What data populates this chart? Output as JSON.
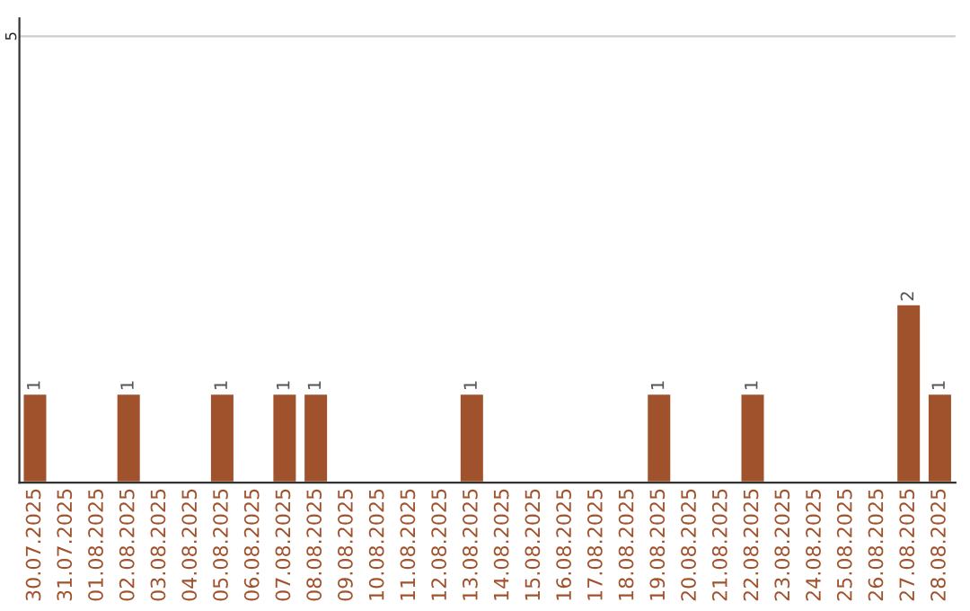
{
  "chart_data": {
    "type": "bar",
    "categories": [
      "30.07.2025",
      "31.07.2025",
      "01.08.2025",
      "02.08.2025",
      "03.08.2025",
      "04.08.2025",
      "05.08.2025",
      "06.08.2025",
      "07.08.2025",
      "08.08.2025",
      "09.08.2025",
      "10.08.2025",
      "11.08.2025",
      "12.08.2025",
      "13.08.2025",
      "14.08.2025",
      "15.08.2025",
      "16.08.2025",
      "17.08.2025",
      "18.08.2025",
      "19.08.2025",
      "20.08.2025",
      "21.08.2025",
      "22.08.2025",
      "23.08.2025",
      "24.08.2025",
      "25.08.2025",
      "26.08.2025",
      "27.08.2025",
      "28.08.2025"
    ],
    "values": [
      1,
      null,
      null,
      1,
      null,
      null,
      1,
      null,
      1,
      1,
      null,
      null,
      null,
      null,
      1,
      null,
      null,
      null,
      null,
      null,
      1,
      null,
      null,
      1,
      null,
      null,
      null,
      null,
      2,
      1
    ],
    "value_labels": [
      "1",
      null,
      null,
      "1",
      null,
      null,
      "1",
      null,
      "1",
      "1",
      null,
      null,
      null,
      null,
      "1",
      null,
      null,
      null,
      null,
      null,
      "1",
      null,
      null,
      "1",
      null,
      null,
      null,
      null,
      "2",
      "1"
    ],
    "color": "#a0522d",
    "ylim": [
      0,
      5.2
    ],
    "yticks": [
      5
    ],
    "grid": "y",
    "legend": false
  }
}
